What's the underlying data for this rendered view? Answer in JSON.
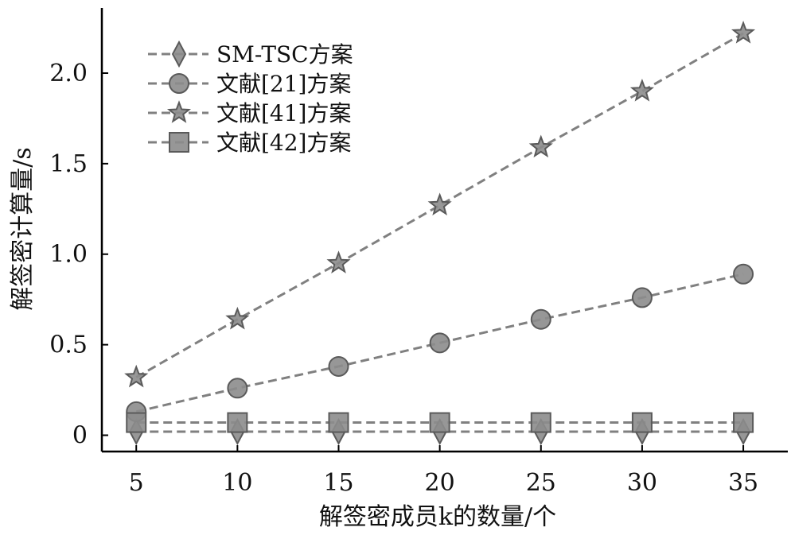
{
  "chart_data": {
    "type": "line",
    "title": "",
    "xlabel": "解签密成员k的数量/个",
    "ylabel": "解签密计算量/s",
    "x": [
      5,
      10,
      15,
      20,
      25,
      30,
      35
    ],
    "xticks": [
      "5",
      "10",
      "15",
      "20",
      "25",
      "30",
      "35"
    ],
    "yticks": [
      {
        "value": 0,
        "label": "0"
      },
      {
        "value": 0.5,
        "label": "0.5"
      },
      {
        "value": 1.0,
        "label": "1.0"
      },
      {
        "value": 1.5,
        "label": "1.5"
      },
      {
        "value": 2.0,
        "label": "2.0"
      }
    ],
    "xlim": [
      3.3,
      37.2
    ],
    "ylim": [
      -0.09,
      2.36
    ],
    "grid": false,
    "legend_position": "top-left",
    "series": [
      {
        "name": "SM-TSC方案",
        "marker": "diamond",
        "values": [
          0.02,
          0.02,
          0.02,
          0.02,
          0.02,
          0.02,
          0.02
        ]
      },
      {
        "name": "文献[21]方案",
        "marker": "circle",
        "values": [
          0.13,
          0.26,
          0.38,
          0.51,
          0.64,
          0.76,
          0.89
        ]
      },
      {
        "name": "文献[41]方案",
        "marker": "star",
        "values": [
          0.32,
          0.64,
          0.95,
          1.27,
          1.59,
          1.9,
          2.22
        ]
      },
      {
        "name": "文献[42]方案",
        "marker": "square",
        "values": [
          0.07,
          0.07,
          0.07,
          0.07,
          0.07,
          0.07,
          0.07
        ]
      }
    ],
    "colors": {
      "line": "#808080",
      "marker_fill": "#8c8c8c",
      "marker_stroke": "#5a5a5a",
      "axis": "#000000"
    }
  }
}
